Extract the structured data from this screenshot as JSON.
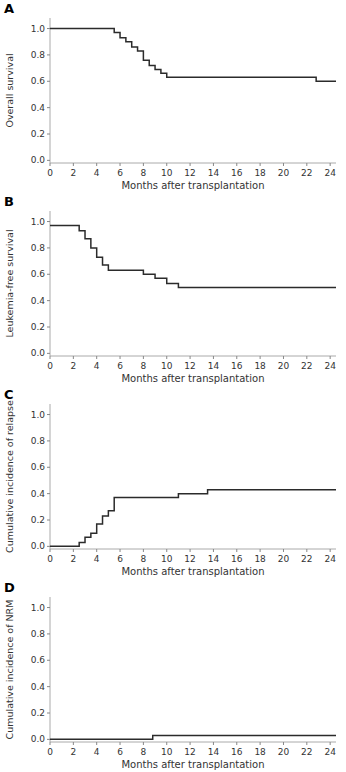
{
  "chart_data": [
    {
      "type": "step",
      "title": "A",
      "ylabel": "Overall survival",
      "xlabel": "Months after transplantation",
      "xlim": [
        0,
        24.5
      ],
      "ylim": [
        -0.02,
        1.08
      ],
      "yticks": [
        {
          "value": 0.0,
          "label": "0.0"
        },
        0.2,
        0.4,
        0.6,
        0.8,
        {
          "value": 1.0,
          "label": "1.0"
        }
      ],
      "xticks": [
        0,
        2,
        4,
        6,
        8,
        10,
        12,
        14,
        16,
        18,
        20,
        22,
        24
      ],
      "x": [
        0,
        5.0,
        5.5,
        6.0,
        6.5,
        7.0,
        7.5,
        8.0,
        8.5,
        9.0,
        9.5,
        10.0,
        10.5,
        22.5,
        22.8,
        24.5
      ],
      "values": [
        1.0,
        1.0,
        0.97,
        0.93,
        0.9,
        0.86,
        0.83,
        0.76,
        0.72,
        0.69,
        0.66,
        0.63,
        0.63,
        0.63,
        0.6,
        0.6
      ],
      "color": "#2b2b2b",
      "grid": false
    },
    {
      "type": "step",
      "title": "B",
      "ylabel": "Leukemia-free survival",
      "xlabel": "Months after transplantation",
      "xlim": [
        0,
        24.5
      ],
      "ylim": [
        -0.02,
        1.08
      ],
      "yticks": [
        {
          "value": 0.0,
          "label": "0.0"
        },
        0.2,
        0.4,
        0.6,
        0.8,
        {
          "value": 1.0,
          "label": "1.0"
        }
      ],
      "xticks": [
        0,
        2,
        4,
        6,
        8,
        10,
        12,
        14,
        16,
        18,
        20,
        22,
        24
      ],
      "x": [
        0,
        2.0,
        2.5,
        3.0,
        3.5,
        4.0,
        4.5,
        5.0,
        8.0,
        9.0,
        10.0,
        11.0,
        13.0,
        24.5
      ],
      "values": [
        0.97,
        0.97,
        0.93,
        0.87,
        0.8,
        0.73,
        0.67,
        0.63,
        0.6,
        0.57,
        0.53,
        0.5,
        0.5,
        0.5
      ],
      "color": "#2b2b2b",
      "grid": false
    },
    {
      "type": "step",
      "title": "C",
      "ylabel": "Cumulative incidence of relapse",
      "xlabel": "Months after transplantation",
      "xlim": [
        0,
        24.5
      ],
      "ylim": [
        -0.02,
        1.08
      ],
      "yticks": [
        {
          "value": 0.0,
          "label": "0.0"
        },
        0.2,
        0.4,
        0.6,
        0.8,
        {
          "value": 1.0,
          "label": "1.0"
        }
      ],
      "xticks": [
        0,
        2,
        4,
        6,
        8,
        10,
        12,
        14,
        16,
        18,
        20,
        22,
        24
      ],
      "x": [
        0,
        2.0,
        2.5,
        3.0,
        3.5,
        4.0,
        4.5,
        5.0,
        5.5,
        10.0,
        11.0,
        13.0,
        13.5,
        24.5
      ],
      "values": [
        0.0,
        0.0,
        0.03,
        0.07,
        0.1,
        0.17,
        0.23,
        0.27,
        0.37,
        0.37,
        0.4,
        0.4,
        0.43,
        0.43
      ],
      "color": "#2b2b2b",
      "grid": false
    },
    {
      "type": "step",
      "title": "D",
      "ylabel": "Cumulative incidence of NRM",
      "xlabel": "Months after transplantation",
      "xlim": [
        0,
        24.5
      ],
      "ylim": [
        -0.02,
        1.08
      ],
      "yticks": [
        {
          "value": 0.0,
          "label": "0.0"
        },
        0.2,
        0.4,
        0.6,
        0.8,
        {
          "value": 1.0,
          "label": "1.0"
        }
      ],
      "xticks": [
        0,
        2,
        4,
        6,
        8,
        10,
        12,
        14,
        16,
        18,
        20,
        22,
        24
      ],
      "x": [
        0,
        8.5,
        8.8,
        24.5
      ],
      "values": [
        0.0,
        0.0,
        0.03,
        0.03
      ],
      "color": "#2b2b2b",
      "grid": false
    }
  ]
}
